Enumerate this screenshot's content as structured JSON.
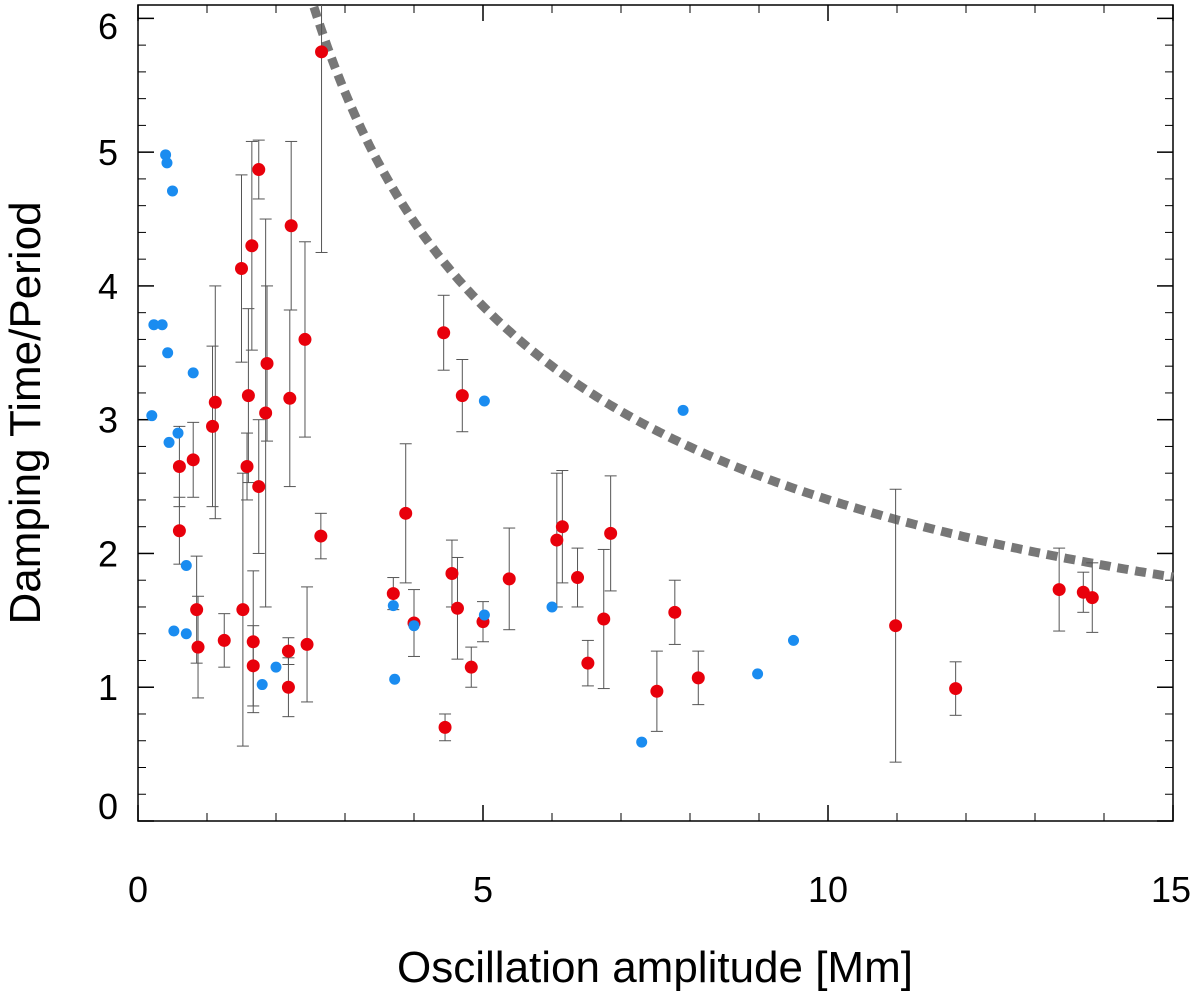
{
  "chart_data": {
    "type": "scatter",
    "title": "",
    "xlabel": "Oscillation amplitude [Mm]",
    "ylabel": "Damping Time/Period",
    "xlim": [
      0,
      15
    ],
    "ylim": [
      0,
      6.1
    ],
    "x_ticks": [
      0,
      5,
      10,
      15
    ],
    "y_ticks": [
      0,
      1,
      2,
      3,
      4,
      5,
      6
    ],
    "x_tick_labels": [
      "0",
      "5",
      "10",
      "15"
    ],
    "y_tick_labels": [
      "0",
      "1",
      "2",
      "3",
      "4",
      "5",
      "6"
    ],
    "grid": false,
    "legend": "none",
    "colors": {
      "red": "#e8000b",
      "blue": "#1a8cf0",
      "curve": "#777777",
      "errorbar": "#555555"
    },
    "curve": {
      "style": "dotted",
      "formula": "y = 11.5 / x^0.68",
      "x_range": [
        1.3,
        15
      ]
    },
    "series": [
      {
        "color": "red",
        "points": [
          {
            "x": 0.6,
            "y": 2.65,
            "err": 0.3
          },
          {
            "x": 0.6,
            "y": 2.17,
            "err": 0.25
          },
          {
            "x": 0.8,
            "y": 2.7,
            "err": 0.28
          },
          {
            "x": 0.85,
            "y": 1.58,
            "err": 0.4
          },
          {
            "x": 0.87,
            "y": 1.3,
            "err": 0.38
          },
          {
            "x": 1.08,
            "y": 2.95,
            "err": 0.6
          },
          {
            "x": 1.12,
            "y": 3.13,
            "err": 0.87
          },
          {
            "x": 1.25,
            "y": 1.35,
            "err": 0.2
          },
          {
            "x": 1.5,
            "y": 4.13,
            "err": 0.7
          },
          {
            "x": 1.52,
            "y": 1.58,
            "err": 1.02
          },
          {
            "x": 1.58,
            "y": 2.65,
            "err": 0.25
          },
          {
            "x": 1.6,
            "y": 3.18,
            "err": 0.65
          },
          {
            "x": 1.65,
            "y": 4.3,
            "err": 0.78
          },
          {
            "x": 1.67,
            "y": 1.34,
            "err": 0.53
          },
          {
            "x": 1.67,
            "y": 1.16,
            "err": 0.3
          },
          {
            "x": 1.75,
            "y": 4.87,
            "err": 0.22
          },
          {
            "x": 1.75,
            "y": 2.5,
            "err": 0.5
          },
          {
            "x": 1.85,
            "y": 3.05,
            "err": 1.45
          },
          {
            "x": 1.87,
            "y": 3.42,
            "err": 0.58
          },
          {
            "x": 2.18,
            "y": 1.0,
            "err": 0.22
          },
          {
            "x": 2.18,
            "y": 1.27,
            "err": 0.1
          },
          {
            "x": 2.2,
            "y": 3.16,
            "err": 0.66
          },
          {
            "x": 2.22,
            "y": 4.45,
            "err": 0.63
          },
          {
            "x": 2.42,
            "y": 3.6,
            "err": 0.73
          },
          {
            "x": 2.45,
            "y": 1.32,
            "err": 0.43
          },
          {
            "x": 2.65,
            "y": 2.13,
            "err": 0.17
          },
          {
            "x": 2.66,
            "y": 5.75,
            "err": 1.5
          },
          {
            "x": 3.7,
            "y": 1.7,
            "err": 0.12
          },
          {
            "x": 3.88,
            "y": 2.3,
            "err": 0.52
          },
          {
            "x": 4.0,
            "y": 1.48,
            "err": 0.25
          },
          {
            "x": 4.43,
            "y": 3.65,
            "err": 0.28
          },
          {
            "x": 4.45,
            "y": 0.7,
            "err": 0.1
          },
          {
            "x": 4.55,
            "y": 1.85,
            "err": 0.25
          },
          {
            "x": 4.63,
            "y": 1.59,
            "err": 0.38
          },
          {
            "x": 4.7,
            "y": 3.18,
            "err": 0.27
          },
          {
            "x": 4.83,
            "y": 1.15,
            "err": 0.15
          },
          {
            "x": 5.0,
            "y": 1.49,
            "err": 0.15
          },
          {
            "x": 5.38,
            "y": 1.81,
            "err": 0.38
          },
          {
            "x": 6.07,
            "y": 2.1,
            "err": 0.5
          },
          {
            "x": 6.15,
            "y": 2.2,
            "err": 0.42
          },
          {
            "x": 6.37,
            "y": 1.82,
            "err": 0.22
          },
          {
            "x": 6.52,
            "y": 1.18,
            "err": 0.17
          },
          {
            "x": 6.75,
            "y": 1.51,
            "err": 0.52
          },
          {
            "x": 6.85,
            "y": 2.15,
            "err": 0.43
          },
          {
            "x": 7.52,
            "y": 0.97,
            "err": 0.3
          },
          {
            "x": 7.78,
            "y": 1.56,
            "err": 0.24
          },
          {
            "x": 8.12,
            "y": 1.07,
            "err": 0.2
          },
          {
            "x": 10.98,
            "y": 1.46,
            "err": 1.02
          },
          {
            "x": 11.85,
            "y": 0.99,
            "err": 0.2
          },
          {
            "x": 13.35,
            "y": 1.73,
            "err": 0.31
          },
          {
            "x": 13.7,
            "y": 1.71,
            "err": 0.15
          },
          {
            "x": 13.83,
            "y": 1.67,
            "err": 0.26
          }
        ]
      },
      {
        "color": "blue",
        "points": [
          {
            "x": 0.2,
            "y": 3.03
          },
          {
            "x": 0.23,
            "y": 3.71
          },
          {
            "x": 0.35,
            "y": 3.71
          },
          {
            "x": 0.4,
            "y": 4.98
          },
          {
            "x": 0.42,
            "y": 4.92
          },
          {
            "x": 0.43,
            "y": 3.5
          },
          {
            "x": 0.45,
            "y": 2.83
          },
          {
            "x": 0.5,
            "y": 4.71
          },
          {
            "x": 0.52,
            "y": 1.42
          },
          {
            "x": 0.58,
            "y": 2.9
          },
          {
            "x": 0.7,
            "y": 1.91
          },
          {
            "x": 0.7,
            "y": 1.4
          },
          {
            "x": 0.8,
            "y": 3.35
          },
          {
            "x": 1.8,
            "y": 1.02
          },
          {
            "x": 2.0,
            "y": 1.15
          },
          {
            "x": 3.7,
            "y": 1.61
          },
          {
            "x": 3.72,
            "y": 1.06
          },
          {
            "x": 4.0,
            "y": 1.46
          },
          {
            "x": 5.02,
            "y": 1.54
          },
          {
            "x": 5.02,
            "y": 3.14
          },
          {
            "x": 6.0,
            "y": 1.6
          },
          {
            "x": 7.3,
            "y": 0.59
          },
          {
            "x": 7.9,
            "y": 3.07
          },
          {
            "x": 8.98,
            "y": 1.1
          },
          {
            "x": 9.5,
            "y": 1.35
          }
        ]
      }
    ]
  }
}
